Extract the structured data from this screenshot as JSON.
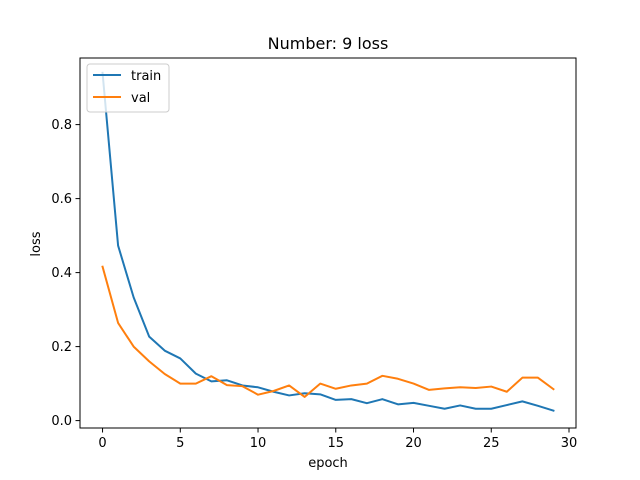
{
  "chart_data": {
    "type": "line",
    "title": "Number: 9 loss",
    "xlabel": "epoch",
    "ylabel": "loss",
    "xlim": [
      -1.45,
      30.45
    ],
    "ylim": [
      -0.02,
      0.98
    ],
    "xticks": [
      0,
      5,
      10,
      15,
      20,
      25,
      30
    ],
    "yticks": [
      0.0,
      0.2,
      0.4,
      0.6,
      0.8
    ],
    "xtick_labels": [
      "0",
      "5",
      "10",
      "15",
      "20",
      "25",
      "30"
    ],
    "ytick_labels": [
      "0.0",
      "0.2",
      "0.4",
      "0.6",
      "0.8"
    ],
    "grid": false,
    "legend_position": "upper-left",
    "x": [
      0,
      1,
      2,
      3,
      4,
      5,
      6,
      7,
      8,
      9,
      10,
      11,
      12,
      13,
      14,
      15,
      16,
      17,
      18,
      19,
      20,
      21,
      22,
      23,
      24,
      25,
      26,
      27,
      28,
      29
    ],
    "series": [
      {
        "name": "train",
        "color": "#1f77b4",
        "values": [
          0.94,
          0.473,
          0.333,
          0.227,
          0.189,
          0.168,
          0.127,
          0.106,
          0.109,
          0.095,
          0.09,
          0.078,
          0.068,
          0.074,
          0.071,
          0.056,
          0.058,
          0.047,
          0.058,
          0.044,
          0.048,
          0.04,
          0.032,
          0.041,
          0.032,
          0.032,
          0.042,
          0.052,
          0.04,
          0.027
        ]
      },
      {
        "name": "val",
        "color": "#ff7f0e",
        "values": [
          0.416,
          0.264,
          0.2,
          0.16,
          0.126,
          0.1,
          0.1,
          0.12,
          0.096,
          0.093,
          0.07,
          0.08,
          0.095,
          0.064,
          0.1,
          0.086,
          0.095,
          0.1,
          0.121,
          0.113,
          0.1,
          0.083,
          0.087,
          0.09,
          0.088,
          0.092,
          0.078,
          0.116,
          0.116,
          0.085
        ]
      }
    ]
  }
}
